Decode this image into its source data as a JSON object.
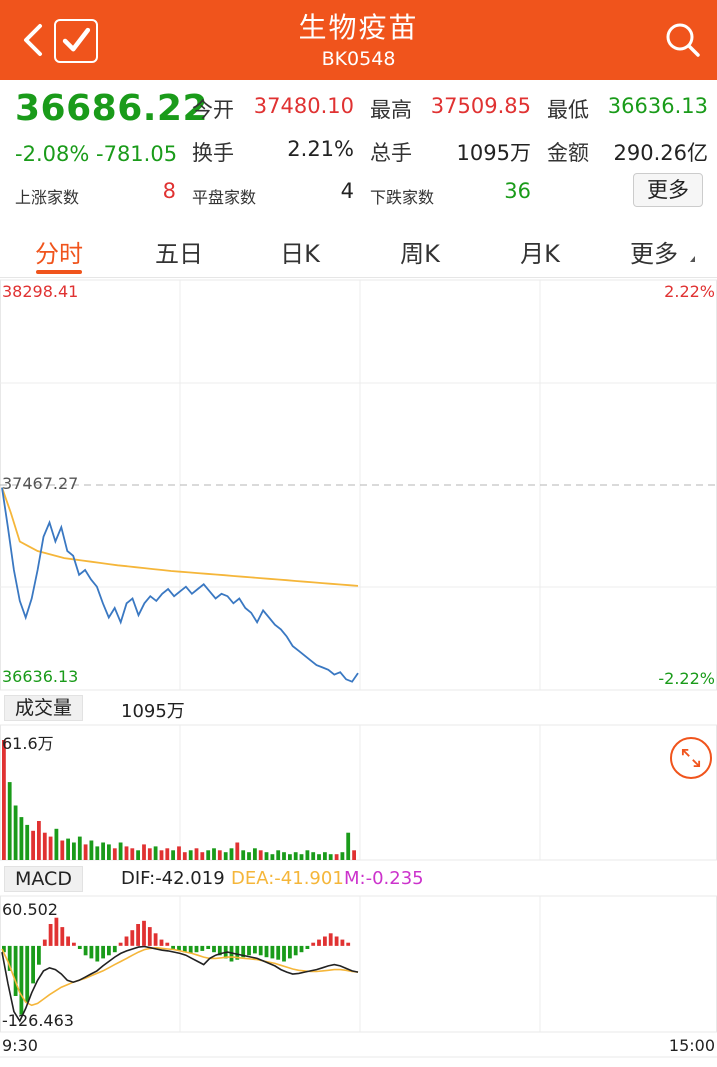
{
  "header": {
    "title": "生物疫苗",
    "code": "BK0548"
  },
  "quote": {
    "price": "36686.22",
    "change_pct": "-2.08%",
    "change_amt": "-781.05",
    "open_label": "今开",
    "open_value": "37480.10",
    "high_label": "最高",
    "high_value": "37509.85",
    "low_label": "最低",
    "low_value": "36636.13",
    "turnover_label": "换手",
    "turnover_value": "2.21%",
    "volume_label": "总手",
    "volume_value": "1095万",
    "amount_label": "金额",
    "amount_value": "290.26亿",
    "up_label": "上涨家数",
    "up_value": "8",
    "flat_label": "平盘家数",
    "flat_value": "4",
    "down_label": "下跌家数",
    "down_value": "36",
    "more_label": "更多"
  },
  "tabs": [
    "分时",
    "五日",
    "日K",
    "周K",
    "月K",
    "更多"
  ],
  "colors": {
    "brand": "#f0541c",
    "up": "#e03232",
    "down": "#1a9b1a",
    "price_line": "#3a78c2",
    "avg_line": "#f5b63a",
    "dea": "#f5b63a",
    "m": "#cc33cc"
  },
  "chart_data": [
    {
      "type": "line",
      "x_start": "9:30",
      "x_end": "15:00",
      "y_max_label": "38298.41",
      "y_ref_label": "37467.27",
      "y_min_label": "36636.13",
      "pct_max_label": "2.22%",
      "pct_min_label": "-2.22%",
      "ylim": [
        36636.13,
        38298.41
      ],
      "reference": 37467.27,
      "series": [
        {
          "role": "price",
          "values": [
            37467,
            37300,
            37120,
            36990,
            36920,
            37000,
            37120,
            37260,
            37320,
            37240,
            37300,
            37200,
            37180,
            37100,
            37120,
            37080,
            37050,
            36980,
            36920,
            36960,
            36900,
            36980,
            37000,
            36930,
            36980,
            37010,
            36990,
            37020,
            37040,
            37010,
            37030,
            37050,
            37020,
            37040,
            37060,
            37030,
            37000,
            37020,
            37010,
            36980,
            37000,
            36960,
            36940,
            36900,
            36950,
            36920,
            36890,
            36870,
            36840,
            36800,
            36780,
            36760,
            36740,
            36720,
            36710,
            36700,
            36680,
            36690,
            36660,
            36650,
            36686
          ]
        },
        {
          "role": "average",
          "values": [
            37467,
            37360,
            37240,
            37220,
            37200,
            37190,
            37180,
            37170,
            37165,
            37160,
            37155,
            37150,
            37145,
            37140,
            37136,
            37132,
            37128,
            37124,
            37120,
            37116,
            37113,
            37110,
            37107,
            37104,
            37101,
            37098,
            37095,
            37092,
            37089,
            37086,
            37083,
            37080,
            37077,
            37074,
            37071,
            37068,
            37065,
            37062,
            37059,
            37056,
            37053
          ]
        }
      ]
    },
    {
      "type": "bar",
      "label": "成交量",
      "total": "1095万",
      "max_label": "61.6万",
      "ylim": [
        0,
        61.6
      ],
      "values": [
        61.6,
        40,
        28,
        22,
        18,
        15,
        20,
        14,
        12,
        16,
        10,
        11,
        9,
        12,
        8,
        10,
        7,
        9,
        8,
        6,
        9,
        7,
        6,
        5,
        8,
        6,
        7,
        5,
        6,
        5,
        7,
        4,
        5,
        6,
        4,
        5,
        6,
        5,
        4,
        6,
        9,
        5,
        4,
        6,
        5,
        4,
        3,
        5,
        4,
        3,
        4,
        3,
        5,
        4,
        3,
        4,
        3,
        3,
        4,
        14,
        5
      ]
    },
    {
      "type": "bar",
      "label": "MACD",
      "dif": "DIF:-42.019",
      "dea": "DEA:-41.901",
      "m": "M:-0.235",
      "max_label": "60.502",
      "min_label": "-126.463",
      "ylim": [
        -126.463,
        60.502
      ],
      "macd": [
        -10,
        -40,
        -80,
        -110,
        -90,
        -60,
        -30,
        10,
        35,
        45,
        30,
        15,
        5,
        -5,
        -15,
        -20,
        -25,
        -20,
        -15,
        -10,
        5,
        15,
        25,
        35,
        40,
        30,
        20,
        10,
        5,
        -5,
        -8,
        -10,
        -12,
        -10,
        -8,
        -5,
        -10,
        -15,
        -20,
        -25,
        -22,
        -18,
        -15,
        -12,
        -15,
        -18,
        -20,
        -22,
        -25,
        -20,
        -15,
        -10,
        -5,
        5,
        10,
        15,
        20,
        15,
        10,
        5,
        0
      ],
      "dif_values": [
        -10,
        -60,
        -105,
        -120,
        -100,
        -75,
        -55,
        -40,
        -35,
        -38,
        -45,
        -55,
        -58,
        -55,
        -50,
        -45,
        -40,
        -32,
        -25,
        -18,
        -12,
        -8,
        -5,
        -2,
        -1,
        -3,
        -5,
        -7,
        -8,
        -10,
        -12,
        -15,
        -20,
        -25,
        -30,
        -20,
        -15,
        -12,
        -10,
        -12,
        -14,
        -16,
        -18,
        -20,
        -24,
        -28,
        -32,
        -38,
        -42,
        -45,
        -44,
        -42,
        -40,
        -38,
        -35,
        -32,
        -30,
        -32,
        -36,
        -40,
        -42
      ],
      "dea_values": [
        -5,
        -25,
        -50,
        -75,
        -90,
        -95,
        -92,
        -85,
        -78,
        -72,
        -66,
        -62,
        -58,
        -55,
        -52,
        -48,
        -44,
        -40,
        -35,
        -30,
        -25,
        -20,
        -15,
        -10,
        -6,
        -4,
        -3,
        -4,
        -5,
        -6,
        -8,
        -10,
        -12,
        -15,
        -18,
        -20,
        -20,
        -19,
        -18,
        -18,
        -19,
        -20,
        -21,
        -22,
        -24,
        -26,
        -28,
        -31,
        -34,
        -37,
        -39,
        -40,
        -41,
        -41,
        -40,
        -39,
        -38,
        -38,
        -39,
        -41,
        -42
      ]
    }
  ]
}
